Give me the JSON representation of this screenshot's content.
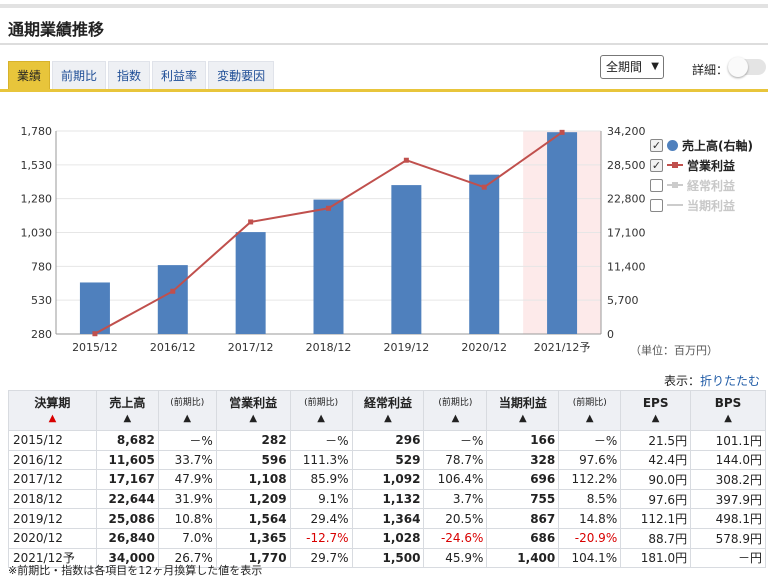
{
  "title": "通期業績推移",
  "tabs": [
    {
      "label": "業績",
      "active": true
    },
    {
      "label": "前期比",
      "active": false
    },
    {
      "label": "指数",
      "active": false
    },
    {
      "label": "利益率",
      "active": false
    },
    {
      "label": "変動要因",
      "active": false
    }
  ],
  "period_select": "全期間",
  "detail_label": "詳細：",
  "legend": [
    {
      "label": "売上高(右軸)",
      "checked": true,
      "color": "#4f80bd"
    },
    {
      "label": "営業利益",
      "checked": true,
      "color": "#c0504d"
    },
    {
      "label": "経常利益",
      "checked": false,
      "color": "#cccccc"
    },
    {
      "label": "当期利益",
      "checked": false,
      "color": "#cccccc"
    }
  ],
  "unit_label": "（単位：百万円）",
  "display_label": "表示：",
  "collapse_link": "折りたたむ",
  "chart_data": {
    "type": "bar+line",
    "categories": [
      "2015/12",
      "2016/12",
      "2017/12",
      "2018/12",
      "2019/12",
      "2020/12",
      "2021/12予"
    ],
    "series": [
      {
        "name": "売上高(右軸)",
        "type": "bar",
        "axis": "right",
        "values": [
          8682,
          11605,
          17167,
          22644,
          25086,
          26840,
          34000
        ]
      },
      {
        "name": "営業利益",
        "type": "line",
        "axis": "left",
        "values": [
          282,
          596,
          1108,
          1209,
          1564,
          1365,
          1770
        ]
      }
    ],
    "left_ticks": [
      "1,780",
      "1,530",
      "1,280",
      "1,030",
      "780",
      "530",
      "280"
    ],
    "right_ticks": [
      "34,200",
      "28,500",
      "22,800",
      "17,100",
      "11,400",
      "5,700",
      "0"
    ],
    "left_range": [
      280,
      1780
    ],
    "right_range": [
      0,
      34200
    ],
    "highlight_category": "2021/12予"
  },
  "table": {
    "headers": [
      {
        "label": "決算期",
        "tri": "▲",
        "red": true
      },
      {
        "label": "売上高",
        "tri": "▲"
      },
      {
        "label": "(前期比)",
        "tri": "▲",
        "sub": true
      },
      {
        "label": "営業利益",
        "tri": "▲"
      },
      {
        "label": "(前期比)",
        "tri": "▲",
        "sub": true
      },
      {
        "label": "経常利益",
        "tri": "▲"
      },
      {
        "label": "(前期比)",
        "tri": "▲",
        "sub": true
      },
      {
        "label": "当期利益",
        "tri": "▲"
      },
      {
        "label": "(前期比)",
        "tri": "▲",
        "sub": true
      },
      {
        "label": "EPS",
        "tri": "▲"
      },
      {
        "label": "BPS",
        "tri": "▲"
      }
    ],
    "rows": [
      [
        "2015/12",
        "8,682",
        "－%",
        "282",
        "－%",
        "296",
        "－%",
        "166",
        "－%",
        "21.5円",
        "101.1円"
      ],
      [
        "2016/12",
        "11,605",
        "33.7%",
        "596",
        "111.3%",
        "529",
        "78.7%",
        "328",
        "97.6%",
        "42.4円",
        "144.0円"
      ],
      [
        "2017/12",
        "17,167",
        "47.9%",
        "1,108",
        "85.9%",
        "1,092",
        "106.4%",
        "696",
        "112.2%",
        "90.0円",
        "308.2円"
      ],
      [
        "2018/12",
        "22,644",
        "31.9%",
        "1,209",
        "9.1%",
        "1,132",
        "3.7%",
        "755",
        "8.5%",
        "97.6円",
        "397.9円"
      ],
      [
        "2019/12",
        "25,086",
        "10.8%",
        "1,564",
        "29.4%",
        "1,364",
        "20.5%",
        "867",
        "14.8%",
        "112.1円",
        "498.1円"
      ],
      [
        "2020/12",
        "26,840",
        "7.0%",
        "1,365",
        "-12.7%",
        "1,028",
        "-24.6%",
        "686",
        "-20.9%",
        "88.7円",
        "578.9円"
      ],
      [
        "2021/12予",
        "34,000",
        "26.7%",
        "1,770",
        "29.7%",
        "1,500",
        "45.9%",
        "1,400",
        "104.1%",
        "181.0円",
        "－円"
      ]
    ]
  },
  "note": "※前期比・指数は各項目を12ヶ月換算した値を表示"
}
